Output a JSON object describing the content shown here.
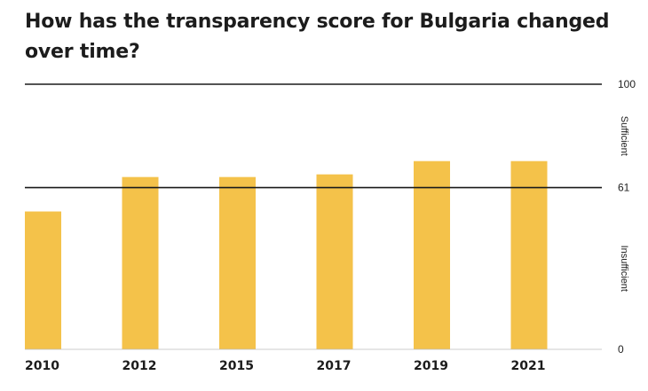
{
  "title": "How has the transparency score for Bulgaria changed over time?",
  "colors": {
    "bar": "#F4C24A",
    "axis_line": "#1a1a1a",
    "text": "#1c1c1c"
  },
  "chart_data": {
    "type": "bar",
    "title": "How has the transparency score for Bulgaria changed over time?",
    "categories": [
      "2010",
      "2012",
      "2015",
      "2017",
      "2019",
      "2021"
    ],
    "values": [
      52,
      65,
      65,
      66,
      71,
      71
    ],
    "ylim": [
      0,
      100
    ],
    "yticks": [
      {
        "value": 100,
        "label": "100"
      },
      {
        "value": 61,
        "label": "61"
      },
      {
        "value": 0,
        "label": "0"
      }
    ],
    "bands": [
      {
        "label": "Sufficient",
        "from": 61,
        "to": 100
      },
      {
        "label": "Insufficient",
        "from": 0,
        "to": 61
      }
    ],
    "xlabel": "",
    "ylabel": "",
    "grid": false,
    "legend": "none"
  }
}
